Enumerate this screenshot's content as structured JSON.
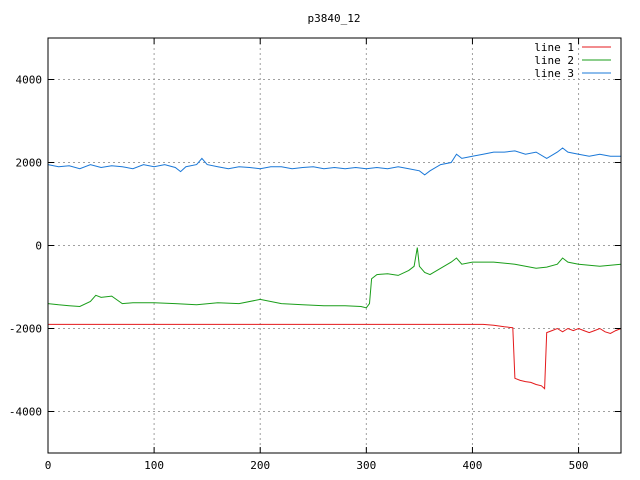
{
  "chart_data": {
    "type": "line",
    "title": "p3840_12",
    "xlabel": "",
    "ylabel": "",
    "xlim": [
      0,
      540
    ],
    "ylim": [
      -5000,
      5000
    ],
    "xticks": [
      0,
      100,
      200,
      300,
      400,
      500
    ],
    "yticks": [
      -4000,
      -2000,
      0,
      2000,
      4000
    ],
    "grid": true,
    "legend_position": "top-right",
    "series": [
      {
        "name": "line 1",
        "color": "#e41a1c",
        "x": [
          0,
          100,
          200,
          300,
          400,
          410,
          420,
          430,
          438,
          440,
          445,
          450,
          455,
          460,
          465,
          468,
          470,
          475,
          480,
          485,
          490,
          495,
          500,
          505,
          510,
          515,
          520,
          525,
          530,
          535,
          540
        ],
        "y": [
          -1900,
          -1900,
          -1900,
          -1900,
          -1900,
          -1900,
          -1920,
          -1960,
          -1980,
          -3200,
          -3250,
          -3280,
          -3300,
          -3350,
          -3380,
          -3450,
          -2100,
          -2050,
          -2000,
          -2080,
          -2000,
          -2050,
          -2000,
          -2050,
          -2100,
          -2050,
          -2000,
          -2080,
          -2120,
          -2050,
          -2000
        ]
      },
      {
        "name": "line 2",
        "color": "#1a9e1a",
        "x": [
          0,
          10,
          20,
          30,
          40,
          45,
          50,
          60,
          70,
          80,
          100,
          120,
          140,
          160,
          180,
          200,
          220,
          240,
          260,
          280,
          295,
          300,
          303,
          305,
          310,
          320,
          330,
          340,
          345,
          348,
          350,
          355,
          360,
          370,
          380,
          385,
          390,
          400,
          420,
          440,
          460,
          470,
          480,
          485,
          490,
          500,
          520,
          540
        ],
        "y": [
          -1400,
          -1430,
          -1450,
          -1470,
          -1350,
          -1200,
          -1250,
          -1220,
          -1400,
          -1380,
          -1380,
          -1400,
          -1430,
          -1380,
          -1400,
          -1300,
          -1400,
          -1430,
          -1450,
          -1450,
          -1470,
          -1500,
          -1400,
          -800,
          -700,
          -680,
          -720,
          -600,
          -500,
          -50,
          -500,
          -650,
          -700,
          -550,
          -400,
          -300,
          -450,
          -400,
          -400,
          -450,
          -550,
          -520,
          -450,
          -300,
          -400,
          -450,
          -500,
          -450
        ]
      },
      {
        "name": "line 3",
        "color": "#1a78d8",
        "x": [
          0,
          10,
          20,
          30,
          40,
          50,
          60,
          70,
          80,
          90,
          100,
          110,
          120,
          125,
          130,
          140,
          145,
          150,
          160,
          170,
          180,
          190,
          200,
          210,
          220,
          230,
          240,
          250,
          260,
          270,
          280,
          290,
          300,
          310,
          320,
          330,
          340,
          350,
          355,
          360,
          370,
          380,
          385,
          390,
          400,
          410,
          420,
          430,
          440,
          450,
          460,
          470,
          480,
          485,
          490,
          500,
          510,
          520,
          530,
          540
        ],
        "y": [
          1950,
          1900,
          1920,
          1850,
          1950,
          1880,
          1920,
          1900,
          1850,
          1950,
          1900,
          1950,
          1880,
          1780,
          1900,
          1950,
          2100,
          1950,
          1900,
          1850,
          1900,
          1880,
          1850,
          1900,
          1900,
          1850,
          1880,
          1900,
          1850,
          1880,
          1850,
          1880,
          1850,
          1880,
          1850,
          1900,
          1850,
          1800,
          1700,
          1800,
          1950,
          2000,
          2200,
          2100,
          2150,
          2200,
          2250,
          2250,
          2280,
          2200,
          2250,
          2100,
          2250,
          2350,
          2250,
          2200,
          2150,
          2200,
          2150,
          2150
        ]
      }
    ]
  }
}
